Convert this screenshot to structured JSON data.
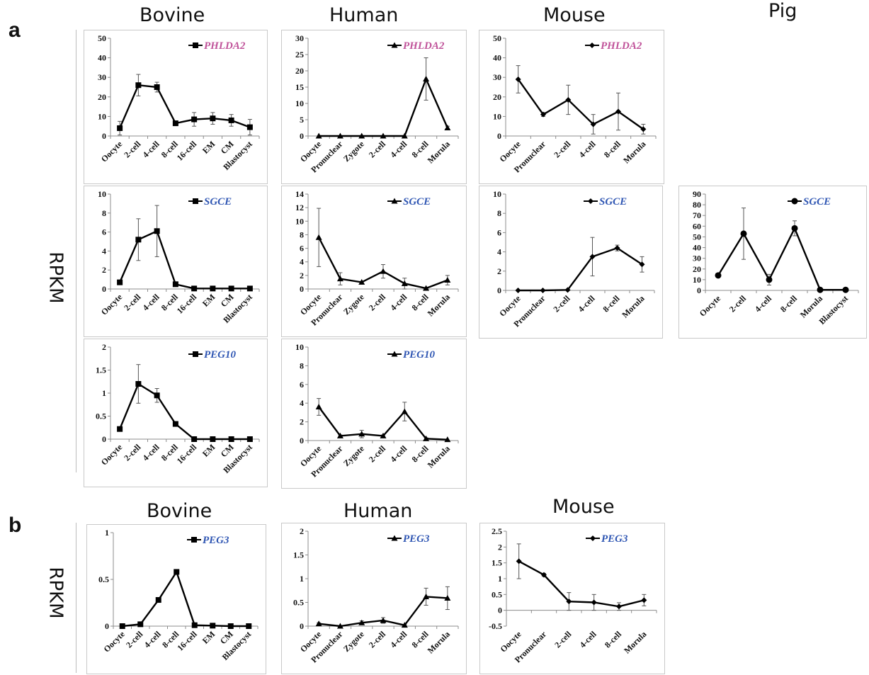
{
  "section_a": {
    "label": "a",
    "headers": {
      "bovine": "Bovine",
      "human": "Human",
      "mouse": "Mouse",
      "pig": "Pig"
    },
    "ylabel": "RPKM"
  },
  "section_b": {
    "label": "b",
    "headers": {
      "bovine": "Bovine",
      "human": "Human",
      "mouse": "Mouse"
    },
    "ylabel": "RPKM"
  },
  "colors": {
    "pink": "#c0539a",
    "blue": "#2f56b3",
    "line": "#000000"
  },
  "chart_data": [
    {
      "type": "line",
      "name": "a-bovine-phlda2",
      "gene": "PHLDA2",
      "gene_color": "pink",
      "marker": "square",
      "categories": [
        "Oocyte",
        "2-cell",
        "4-cell",
        "8-cell",
        "16-cell",
        "EM",
        "CM",
        "Blastocyst"
      ],
      "values": [
        4,
        26,
        25,
        6.5,
        8.5,
        9,
        8,
        4.5
      ],
      "err": [
        3.5,
        5.5,
        2.5,
        0.8,
        3.5,
        3,
        3,
        4
      ],
      "ylim": [
        0,
        50
      ],
      "yticks": [
        0,
        10,
        20,
        30,
        40,
        50
      ]
    },
    {
      "type": "line",
      "name": "a-human-phlda2",
      "gene": "PHLDA2",
      "gene_color": "pink",
      "marker": "triangle",
      "categories": [
        "Oocyte",
        "Pronuclear",
        "Zygote",
        "2-cell",
        "4-cell",
        "8-cell",
        "Morula"
      ],
      "values": [
        0,
        0,
        0,
        0,
        0,
        17.5,
        2.5
      ],
      "err": [
        0,
        0,
        0,
        0,
        0,
        6.5,
        0.5
      ],
      "ylim": [
        0,
        30
      ],
      "yticks": [
        0,
        5,
        10,
        15,
        20,
        25,
        30
      ]
    },
    {
      "type": "line",
      "name": "a-mouse-phlda2",
      "gene": "PHLDA2",
      "gene_color": "pink",
      "marker": "diamond",
      "categories": [
        "Oocyte",
        "Pronuclear",
        "2-cell",
        "4-cell",
        "8-cell",
        "Morula"
      ],
      "values": [
        29,
        11,
        18.5,
        6,
        12.5,
        3.5
      ],
      "err": [
        7,
        1,
        7.5,
        5,
        9.5,
        2.5
      ],
      "ylim": [
        0,
        50
      ],
      "yticks": [
        0,
        10,
        20,
        30,
        40,
        50
      ]
    },
    {
      "type": "line",
      "name": "a-bovine-sgce",
      "gene": "SGCE",
      "gene_color": "blue",
      "marker": "square",
      "categories": [
        "Oocyte",
        "2-cell",
        "4-cell",
        "8-cell",
        "16-cell",
        "EM",
        "CM",
        "Blastocyst"
      ],
      "values": [
        0.7,
        5.2,
        6.1,
        0.5,
        0.05,
        0.05,
        0.05,
        0.05
      ],
      "err": [
        0.1,
        2.2,
        2.7,
        0.1,
        0,
        0,
        0,
        0
      ],
      "ylim": [
        0,
        10
      ],
      "yticks": [
        0,
        2,
        4,
        6,
        8,
        10
      ]
    },
    {
      "type": "line",
      "name": "a-human-sgce",
      "gene": "SGCE",
      "gene_color": "blue",
      "marker": "triangle",
      "categories": [
        "Oocyte",
        "Pronuclear",
        "Zygote",
        "2-cell",
        "4-cell",
        "8-cell",
        "Morula"
      ],
      "values": [
        7.6,
        1.5,
        1,
        2.6,
        0.8,
        0.1,
        1.3
      ],
      "err": [
        4.3,
        0.9,
        0.1,
        1,
        0.8,
        0.1,
        0.7
      ],
      "ylim": [
        0,
        14
      ],
      "yticks": [
        0,
        2,
        4,
        6,
        8,
        10,
        12,
        14
      ]
    },
    {
      "type": "line",
      "name": "a-mouse-sgce",
      "gene": "SGCE",
      "gene_color": "blue",
      "marker": "diamond",
      "categories": [
        "Oocyte",
        "Pronuclear",
        "2-cell",
        "4-cell",
        "8-cell",
        "Morula"
      ],
      "values": [
        0,
        0,
        0.05,
        3.5,
        4.4,
        2.7
      ],
      "err": [
        0,
        0,
        0,
        2,
        0.3,
        0.8
      ],
      "ylim": [
        0,
        10
      ],
      "yticks": [
        0,
        2,
        4,
        6,
        8,
        10
      ]
    },
    {
      "type": "line",
      "name": "a-pig-sgce",
      "gene": "SGCE",
      "gene_color": "blue",
      "marker": "circle",
      "categories": [
        "Oocyte",
        "2-cell",
        "4-cell",
        "8-cell",
        "Morula",
        "Blastocyst"
      ],
      "values": [
        14,
        53,
        10,
        58,
        0.5,
        0.5
      ],
      "err": [
        1,
        24,
        5,
        7,
        0,
        0
      ],
      "ylim": [
        0,
        90
      ],
      "yticks": [
        0,
        10,
        20,
        30,
        40,
        50,
        60,
        70,
        80,
        90
      ]
    },
    {
      "type": "line",
      "name": "a-bovine-peg10",
      "gene": "PEG10",
      "gene_color": "blue",
      "marker": "square",
      "categories": [
        "Oocyte",
        "2-cell",
        "4-cell",
        "8-cell",
        "16-cell",
        "EM",
        "CM",
        "Blastocyst"
      ],
      "values": [
        0.22,
        1.2,
        0.95,
        0.33,
        0,
        0,
        0,
        0
      ],
      "err": [
        0.03,
        0.42,
        0.15,
        0.04,
        0,
        0,
        0,
        0
      ],
      "ylim": [
        0,
        2
      ],
      "yticks": [
        0,
        0.5,
        1,
        1.5,
        2
      ]
    },
    {
      "type": "line",
      "name": "a-human-peg10",
      "gene": "PEG10",
      "gene_color": "blue",
      "marker": "triangle",
      "categories": [
        "Oocyte",
        "Pronuclear",
        "Zygote",
        "2-cell",
        "4-cell",
        "8-cell",
        "Morula"
      ],
      "values": [
        3.6,
        0.5,
        0.7,
        0.5,
        3.1,
        0.2,
        0.1
      ],
      "err": [
        0.9,
        0.1,
        0.4,
        0.1,
        1,
        0.1,
        0
      ],
      "ylim": [
        0,
        10
      ],
      "yticks": [
        0,
        2,
        4,
        6,
        8,
        10
      ]
    },
    {
      "type": "line",
      "name": "b-bovine-peg3",
      "gene": "PEG3",
      "gene_color": "blue",
      "marker": "square",
      "categories": [
        "Oocyte",
        "2-cell",
        "4-cell",
        "8-cell",
        "16-cell",
        "EM",
        "CM",
        "Blastocyst"
      ],
      "values": [
        0,
        0.02,
        0.28,
        0.58,
        0.01,
        0.005,
        0,
        0
      ],
      "err": [
        0,
        0,
        0,
        0,
        0,
        0,
        0,
        0
      ],
      "ylim": [
        0,
        1
      ],
      "yticks": [
        0,
        0.5,
        1
      ]
    },
    {
      "type": "line",
      "name": "b-human-peg3",
      "gene": "PEG3",
      "gene_color": "blue",
      "marker": "triangle",
      "categories": [
        "Oocyte",
        "Pronuclear",
        "Zygote",
        "2-cell",
        "4-cell",
        "8-cell",
        "Morula"
      ],
      "values": [
        0.05,
        0,
        0.07,
        0.12,
        0.02,
        0.62,
        0.59
      ],
      "err": [
        0.02,
        0,
        0.04,
        0.06,
        0.01,
        0.18,
        0.24
      ],
      "ylim": [
        0,
        2
      ],
      "yticks": [
        0,
        0.5,
        1,
        1.5,
        2
      ]
    },
    {
      "type": "line",
      "name": "b-mouse-peg3",
      "gene": "PEG3",
      "gene_color": "blue",
      "marker": "diamond",
      "categories": [
        "Oocyte",
        "Pronuclear",
        "2-cell",
        "4-cell",
        "8-cell",
        "Morula"
      ],
      "values": [
        1.55,
        1.12,
        0.28,
        0.25,
        0.12,
        0.32
      ],
      "err": [
        0.55,
        0.05,
        0.28,
        0.25,
        0.12,
        0.18
      ],
      "ylim": [
        -0.5,
        2.5
      ],
      "yticks": [
        -0.5,
        0,
        0.5,
        1,
        1.5,
        2,
        2.5
      ]
    }
  ]
}
